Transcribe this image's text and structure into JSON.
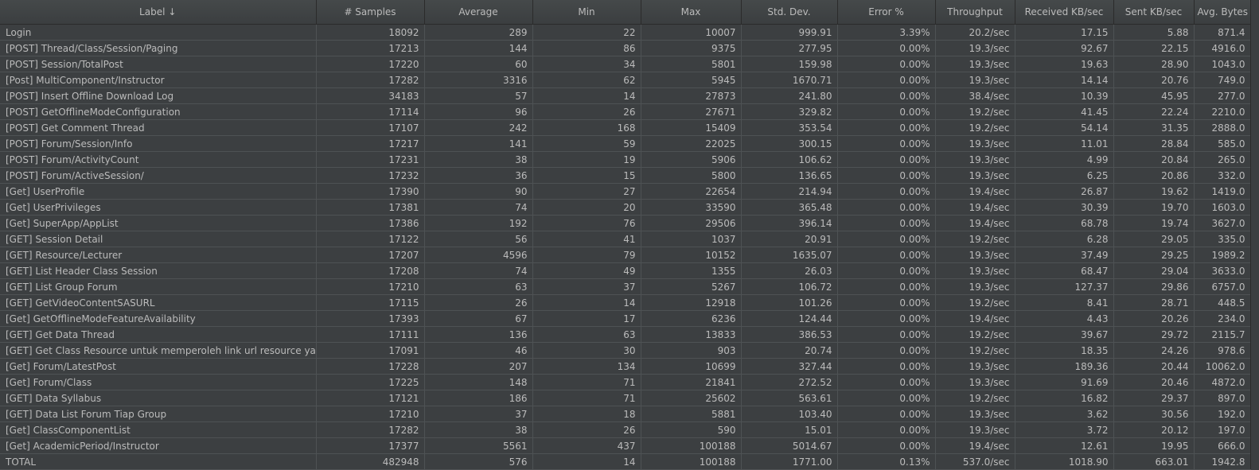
{
  "columns": [
    "Label",
    "# Samples",
    "Average",
    "Min",
    "Max",
    "Std. Dev.",
    "Error %",
    "Throughput",
    "Received KB/sec",
    "Sent KB/sec",
    "Avg. Bytes"
  ],
  "sort_indicator": "↓",
  "rows": [
    [
      "Login",
      "18092",
      "289",
      "22",
      "10007",
      "999.91",
      "3.39%",
      "20.2/sec",
      "17.15",
      "5.88",
      "871.4"
    ],
    [
      "[POST] Thread/Class/Session/Paging",
      "17213",
      "144",
      "86",
      "9375",
      "277.95",
      "0.00%",
      "19.3/sec",
      "92.67",
      "22.15",
      "4916.0"
    ],
    [
      "[POST] Session/TotalPost",
      "17220",
      "60",
      "34",
      "5801",
      "159.98",
      "0.00%",
      "19.3/sec",
      "19.63",
      "28.90",
      "1043.0"
    ],
    [
      "[Post] MultiComponent/Instructor",
      "17282",
      "3316",
      "62",
      "5945",
      "1670.71",
      "0.00%",
      "19.3/sec",
      "14.14",
      "20.76",
      "749.0"
    ],
    [
      "[POST] Insert Offline Download Log",
      "34183",
      "57",
      "14",
      "27873",
      "241.80",
      "0.00%",
      "38.4/sec",
      "10.39",
      "45.95",
      "277.0"
    ],
    [
      "[POST] GetOfflineModeConfiguration",
      "17114",
      "96",
      "26",
      "27671",
      "329.82",
      "0.00%",
      "19.2/sec",
      "41.45",
      "22.24",
      "2210.0"
    ],
    [
      "[POST] Get Comment Thread",
      "17107",
      "242",
      "168",
      "15409",
      "353.54",
      "0.00%",
      "19.2/sec",
      "54.14",
      "31.35",
      "2888.0"
    ],
    [
      "[POST] Forum/Session/Info",
      "17217",
      "141",
      "59",
      "22025",
      "300.15",
      "0.00%",
      "19.3/sec",
      "11.01",
      "28.84",
      "585.0"
    ],
    [
      "[POST] Forum/ActivityCount",
      "17231",
      "38",
      "19",
      "5906",
      "106.62",
      "0.00%",
      "19.3/sec",
      "4.99",
      "20.84",
      "265.0"
    ],
    [
      "[POST] Forum/ActiveSession/",
      "17232",
      "36",
      "15",
      "5800",
      "136.65",
      "0.00%",
      "19.3/sec",
      "6.25",
      "20.86",
      "332.0"
    ],
    [
      "[Get] UserProfile",
      "17390",
      "90",
      "27",
      "22654",
      "214.94",
      "0.00%",
      "19.4/sec",
      "26.87",
      "19.62",
      "1419.0"
    ],
    [
      "[Get] UserPrivileges",
      "17381",
      "74",
      "20",
      "33590",
      "365.48",
      "0.00%",
      "19.4/sec",
      "30.39",
      "19.70",
      "1603.0"
    ],
    [
      "[Get] SuperApp/AppList",
      "17386",
      "192",
      "76",
      "29506",
      "396.14",
      "0.00%",
      "19.4/sec",
      "68.78",
      "19.74",
      "3627.0"
    ],
    [
      "[GET] Session Detail",
      "17122",
      "56",
      "41",
      "1037",
      "20.91",
      "0.00%",
      "19.2/sec",
      "6.28",
      "29.05",
      "335.0"
    ],
    [
      "[GET] Resource/Lecturer",
      "17207",
      "4596",
      "79",
      "10152",
      "1635.07",
      "0.00%",
      "19.3/sec",
      "37.49",
      "29.25",
      "1989.2"
    ],
    [
      "[GET] List Header Class Session",
      "17208",
      "74",
      "49",
      "1355",
      "26.03",
      "0.00%",
      "19.3/sec",
      "68.47",
      "29.04",
      "3633.0"
    ],
    [
      "[GET] List Group Forum",
      "17210",
      "63",
      "37",
      "5267",
      "106.72",
      "0.00%",
      "19.3/sec",
      "127.37",
      "29.86",
      "6757.0"
    ],
    [
      "[GET] GetVideoContentSASURL",
      "17115",
      "26",
      "14",
      "12918",
      "101.26",
      "0.00%",
      "19.2/sec",
      "8.41",
      "28.71",
      "448.5"
    ],
    [
      "[Get] GetOfflineModeFeatureAvailability",
      "17393",
      "67",
      "17",
      "6236",
      "124.44",
      "0.00%",
      "19.4/sec",
      "4.43",
      "20.26",
      "234.0"
    ],
    [
      "[GET] Get Data Thread",
      "17111",
      "136",
      "63",
      "13833",
      "386.53",
      "0.00%",
      "19.2/sec",
      "39.67",
      "29.72",
      "2115.7"
    ],
    [
      "[GET] Get Class Resource untuk memperoleh link url resource yang valid",
      "17091",
      "46",
      "30",
      "903",
      "20.74",
      "0.00%",
      "19.2/sec",
      "18.35",
      "24.26",
      "978.6"
    ],
    [
      "[Get] Forum/LatestPost",
      "17228",
      "207",
      "134",
      "10699",
      "327.44",
      "0.00%",
      "19.3/sec",
      "189.36",
      "20.44",
      "10062.0"
    ],
    [
      "[Get] Forum/Class",
      "17225",
      "148",
      "71",
      "21841",
      "272.52",
      "0.00%",
      "19.3/sec",
      "91.69",
      "20.46",
      "4872.0"
    ],
    [
      "[GET] Data Syllabus",
      "17121",
      "186",
      "71",
      "25602",
      "563.61",
      "0.00%",
      "19.2/sec",
      "16.82",
      "29.37",
      "897.0"
    ],
    [
      "[GET] Data List Forum Tiap Group",
      "17210",
      "37",
      "18",
      "5881",
      "103.40",
      "0.00%",
      "19.3/sec",
      "3.62",
      "30.56",
      "192.0"
    ],
    [
      "[Get] ClassComponentList",
      "17282",
      "38",
      "26",
      "590",
      "15.01",
      "0.00%",
      "19.3/sec",
      "3.72",
      "20.12",
      "197.0"
    ],
    [
      "[Get] AcademicPeriod/Instructor",
      "17377",
      "5561",
      "437",
      "100188",
      "5014.67",
      "0.00%",
      "19.4/sec",
      "12.61",
      "19.95",
      "666.0"
    ],
    [
      "TOTAL",
      "482948",
      "576",
      "14",
      "100188",
      "1771.00",
      "0.13%",
      "537.0/sec",
      "1018.90",
      "663.01",
      "1942.8"
    ]
  ]
}
